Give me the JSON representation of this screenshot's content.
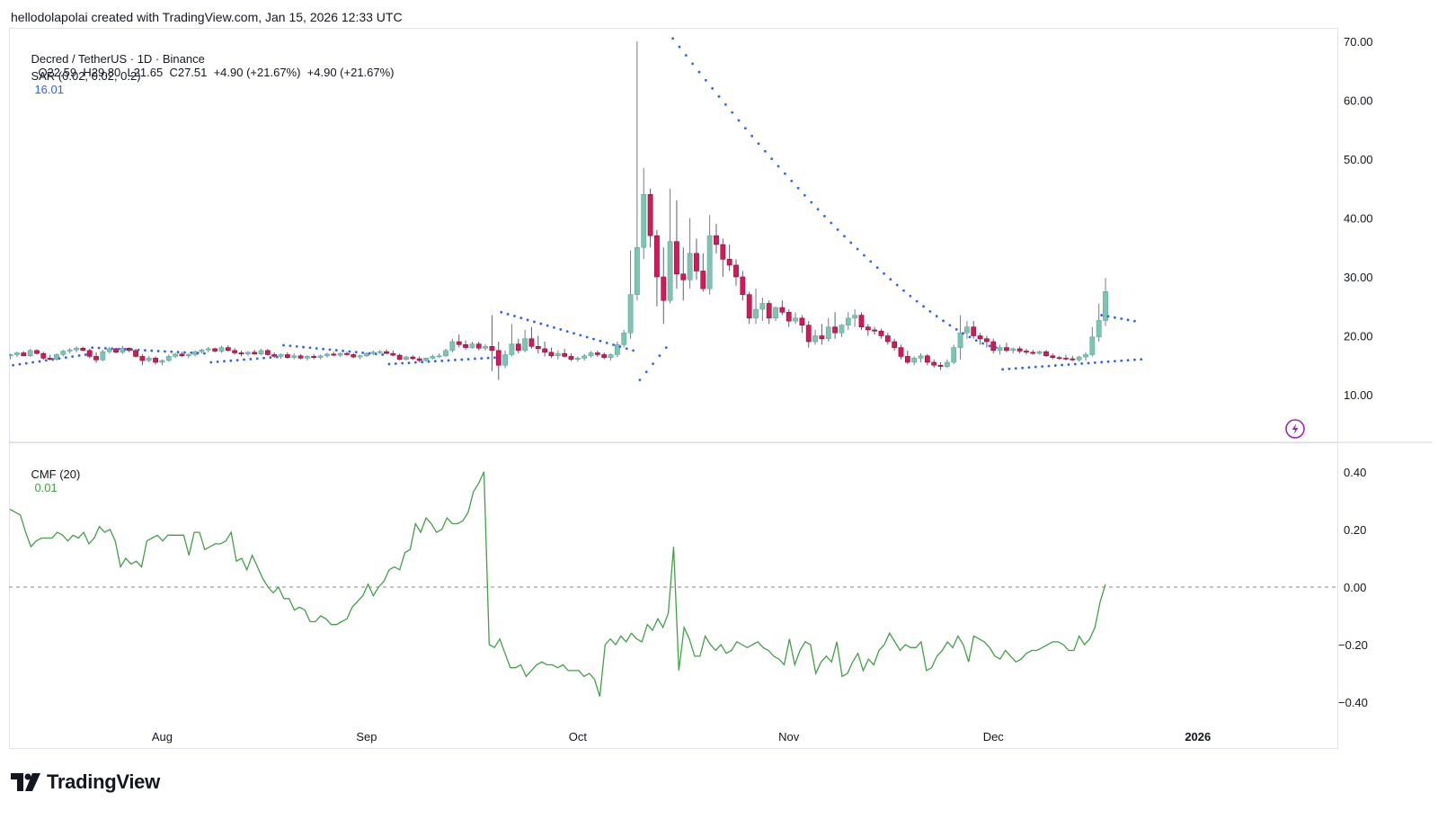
{
  "credit": "hellodolapolai created with TradingView.com, Jan 15, 2026 12:33 UTC",
  "brand": "TradingView",
  "colors": {
    "up": "#7fc4b3",
    "down": "#d6185a",
    "sar": "#2962ff",
    "cmf": "#43a047",
    "axis_text": "#131722",
    "grid": "#e0e3eb",
    "sar_value": "#2962ff",
    "cmf_value": "#43a047",
    "alert_icon": "#9c27b0"
  },
  "legend": {
    "symbol": "Decred / TetherUS · 1D · Binance",
    "ohlc": "O22.59  H29.80  L21.65  C27.51  +4.90 (+21.67%)  +4.90 (+21.67%)",
    "sar_label": "SAR (0.02, 0.02, 0.2)",
    "sar_value": "16.01",
    "cmf_label": "CMF (20)",
    "cmf_value": "0.01"
  },
  "chart_data": [
    {
      "type": "candlestick",
      "title": "Decred / TetherUS · 1D · Binance",
      "y_ticks": [
        "70.00",
        "60.00",
        "50.00",
        "40.00",
        "30.00",
        "20.00",
        "10.00"
      ],
      "x_ticks": [
        "Aug",
        "Sep",
        "Oct",
        "Nov",
        "Dec",
        "2026"
      ],
      "ylim": [
        3,
        71
      ],
      "series_sar": "SAR (0.02, 0.02, 0.2)",
      "candles": [
        [
          16.6,
          17.0,
          16.0,
          16.8
        ],
        [
          16.8,
          17.3,
          16.4,
          17.1
        ],
        [
          17.1,
          17.4,
          16.5,
          16.6
        ],
        [
          16.6,
          17.8,
          16.4,
          17.5
        ],
        [
          17.5,
          17.7,
          16.8,
          17.0
        ],
        [
          17.0,
          17.3,
          15.9,
          16.2
        ],
        [
          16.2,
          16.8,
          15.8,
          16.0
        ],
        [
          16.0,
          17.0,
          15.8,
          16.8
        ],
        [
          16.8,
          17.6,
          16.5,
          17.4
        ],
        [
          17.4,
          17.9,
          17.0,
          17.6
        ],
        [
          17.6,
          18.2,
          17.2,
          17.9
        ],
        [
          17.9,
          18.1,
          17.4,
          17.5
        ],
        [
          17.5,
          17.8,
          16.2,
          16.5
        ],
        [
          16.5,
          17.2,
          15.4,
          15.9
        ],
        [
          15.9,
          17.6,
          15.7,
          17.3
        ],
        [
          17.3,
          18.1,
          17.0,
          17.8
        ],
        [
          17.8,
          18.0,
          17.0,
          17.2
        ],
        [
          17.2,
          18.3,
          16.9,
          17.9
        ],
        [
          17.9,
          18.0,
          17.2,
          17.5
        ],
        [
          17.5,
          17.8,
          16.3,
          16.5
        ],
        [
          16.5,
          16.9,
          15.0,
          15.8
        ],
        [
          15.8,
          16.6,
          15.5,
          16.2
        ],
        [
          16.2,
          16.5,
          15.1,
          15.5
        ],
        [
          15.5,
          16.0,
          15.0,
          15.8
        ],
        [
          15.8,
          16.8,
          15.6,
          16.5
        ],
        [
          16.5,
          17.1,
          16.2,
          16.9
        ],
        [
          16.9,
          17.3,
          16.4,
          16.6
        ],
        [
          16.6,
          17.0,
          16.2,
          16.8
        ],
        [
          16.8,
          17.5,
          16.5,
          17.3
        ],
        [
          17.3,
          17.8,
          17.0,
          17.6
        ],
        [
          17.6,
          18.1,
          17.2,
          17.8
        ],
        [
          17.8,
          18.0,
          17.2,
          17.4
        ],
        [
          17.4,
          18.3,
          17.1,
          18.0
        ],
        [
          18.0,
          18.4,
          17.3,
          17.5
        ],
        [
          17.5,
          17.9,
          16.8,
          17.1
        ],
        [
          17.1,
          17.5,
          16.5,
          16.9
        ],
        [
          16.9,
          17.4,
          16.6,
          17.2
        ],
        [
          17.2,
          17.6,
          16.8,
          16.9
        ],
        [
          16.9,
          17.8,
          16.7,
          17.5
        ],
        [
          17.5,
          17.8,
          16.6,
          16.8
        ],
        [
          16.8,
          17.2,
          16.2,
          16.5
        ],
        [
          16.5,
          17.0,
          16.1,
          16.8
        ],
        [
          16.8,
          17.2,
          16.1,
          16.3
        ],
        [
          16.3,
          17.0,
          16.0,
          16.6
        ],
        [
          16.6,
          16.9,
          16.0,
          16.2
        ],
        [
          16.2,
          16.7,
          15.8,
          16.5
        ],
        [
          16.5,
          16.9,
          16.0,
          16.3
        ],
        [
          16.3,
          16.8,
          16.0,
          16.6
        ],
        [
          16.6,
          17.1,
          16.3,
          16.9
        ],
        [
          16.9,
          17.3,
          16.5,
          16.7
        ],
        [
          16.7,
          17.2,
          16.4,
          17.0
        ],
        [
          17.0,
          17.3,
          16.6,
          16.8
        ],
        [
          16.8,
          17.1,
          16.2,
          16.4
        ],
        [
          16.4,
          16.8,
          16.0,
          16.6
        ],
        [
          16.6,
          17.2,
          16.4,
          17.0
        ],
        [
          17.0,
          17.5,
          16.7,
          17.2
        ],
        [
          17.2,
          17.6,
          16.9,
          17.3
        ],
        [
          17.3,
          17.7,
          16.9,
          17.0
        ],
        [
          17.0,
          17.5,
          16.5,
          16.7
        ],
        [
          16.7,
          17.0,
          15.8,
          16.0
        ],
        [
          16.0,
          16.6,
          15.8,
          16.4
        ],
        [
          16.4,
          16.7,
          15.9,
          16.1
        ],
        [
          16.1,
          16.5,
          15.5,
          15.8
        ],
        [
          15.8,
          16.3,
          15.6,
          16.2
        ],
        [
          16.2,
          16.8,
          16.0,
          16.5
        ],
        [
          16.5,
          17.0,
          16.2,
          16.6
        ],
        [
          16.6,
          17.8,
          16.4,
          17.5
        ],
        [
          17.5,
          19.5,
          17.2,
          19.0
        ],
        [
          19.0,
          20.2,
          18.0,
          18.5
        ],
        [
          18.5,
          19.2,
          17.6,
          18.0
        ],
        [
          18.0,
          19.0,
          17.8,
          18.6
        ],
        [
          18.6,
          19.0,
          17.5,
          17.9
        ],
        [
          17.9,
          18.6,
          17.5,
          18.2
        ],
        [
          18.2,
          23.5,
          14.0,
          17.5
        ],
        [
          17.5,
          19.0,
          12.5,
          15.0
        ],
        [
          15.0,
          17.5,
          14.5,
          16.8
        ],
        [
          16.8,
          22.0,
          16.5,
          18.6
        ],
        [
          18.6,
          19.5,
          17.0,
          17.5
        ],
        [
          17.5,
          21.0,
          17.2,
          19.5
        ],
        [
          19.5,
          21.5,
          17.8,
          18.2
        ],
        [
          18.2,
          20.0,
          17.0,
          17.8
        ],
        [
          17.8,
          19.0,
          16.5,
          17.2
        ],
        [
          17.2,
          18.0,
          16.2,
          16.6
        ],
        [
          16.6,
          17.5,
          16.0,
          17.0
        ],
        [
          17.0,
          17.8,
          16.3,
          16.5
        ],
        [
          16.5,
          17.0,
          15.7,
          16.0
        ],
        [
          16.0,
          16.5,
          15.6,
          16.2
        ],
        [
          16.2,
          16.9,
          15.8,
          16.6
        ],
        [
          16.6,
          17.4,
          16.3,
          17.1
        ],
        [
          17.1,
          17.5,
          16.4,
          16.8
        ],
        [
          16.8,
          17.2,
          16.0,
          16.3
        ],
        [
          16.3,
          17.0,
          15.8,
          16.8
        ],
        [
          16.8,
          19.0,
          16.4,
          18.5
        ],
        [
          18.5,
          21.0,
          18.0,
          20.5
        ],
        [
          20.5,
          34.5,
          19.5,
          27.0
        ],
        [
          27.0,
          70.0,
          26.0,
          35.0
        ],
        [
          35.0,
          48.5,
          33.0,
          44.0
        ],
        [
          44.0,
          45.0,
          35.0,
          37.0
        ],
        [
          37.0,
          38.0,
          25.0,
          30.0
        ],
        [
          30.0,
          35.0,
          22.0,
          26.0
        ],
        [
          26.0,
          45.0,
          25.5,
          36.0
        ],
        [
          36.0,
          43.0,
          28.0,
          30.5
        ],
        [
          30.5,
          35.0,
          26.0,
          29.5
        ],
        [
          29.5,
          40.0,
          28.0,
          34.0
        ],
        [
          34.0,
          36.5,
          29.5,
          31.0
        ],
        [
          31.0,
          34.0,
          27.5,
          28.0
        ],
        [
          28.0,
          40.5,
          27.0,
          37.0
        ],
        [
          37.0,
          39.0,
          34.0,
          35.5
        ],
        [
          35.5,
          36.5,
          30.0,
          33.0
        ],
        [
          33.0,
          35.5,
          31.0,
          32.0
        ],
        [
          32.0,
          33.0,
          28.5,
          30.0
        ],
        [
          30.0,
          31.0,
          26.0,
          27.0
        ],
        [
          27.0,
          27.5,
          22.0,
          23.0
        ],
        [
          23.0,
          28.0,
          22.0,
          24.5
        ],
        [
          24.5,
          26.5,
          22.5,
          25.5
        ],
        [
          25.5,
          26.0,
          22.0,
          23.0
        ],
        [
          23.0,
          25.0,
          22.5,
          24.8
        ],
        [
          24.8,
          26.0,
          23.5,
          24.0
        ],
        [
          24.0,
          24.5,
          21.5,
          22.5
        ],
        [
          22.5,
          24.0,
          22.0,
          23.0
        ],
        [
          23.0,
          23.5,
          20.5,
          21.8
        ],
        [
          21.8,
          22.5,
          18.0,
          19.0
        ],
        [
          19.0,
          21.0,
          18.5,
          20.0
        ],
        [
          20.0,
          22.0,
          18.5,
          19.5
        ],
        [
          19.5,
          23.0,
          19.0,
          21.5
        ],
        [
          21.5,
          24.0,
          19.5,
          20.5
        ],
        [
          20.5,
          22.0,
          19.8,
          21.8
        ],
        [
          21.8,
          24.0,
          21.0,
          23.0
        ],
        [
          23.0,
          24.5,
          21.5,
          23.5
        ],
        [
          23.5,
          24.0,
          21.0,
          21.5
        ],
        [
          21.5,
          22.0,
          20.0,
          21.0
        ],
        [
          21.0,
          21.5,
          20.2,
          20.8
        ],
        [
          20.8,
          21.2,
          19.5,
          20.0
        ],
        [
          20.0,
          20.5,
          18.5,
          19.0
        ],
        [
          19.0,
          19.5,
          17.5,
          18.0
        ],
        [
          18.0,
          18.5,
          16.0,
          16.5
        ],
        [
          16.5,
          17.5,
          15.2,
          15.5
        ],
        [
          15.5,
          16.5,
          15.0,
          16.2
        ],
        [
          16.2,
          17.0,
          15.5,
          16.6
        ],
        [
          16.6,
          16.9,
          15.0,
          15.5
        ],
        [
          15.5,
          16.0,
          14.6,
          15.0
        ],
        [
          15.0,
          15.5,
          14.2,
          14.8
        ],
        [
          14.8,
          16.0,
          14.5,
          15.5
        ],
        [
          15.5,
          18.5,
          15.2,
          18.0
        ],
        [
          18.0,
          23.5,
          16.0,
          20.5
        ],
        [
          20.5,
          22.5,
          19.5,
          21.5
        ],
        [
          21.5,
          22.5,
          19.5,
          20.0
        ],
        [
          20.0,
          20.5,
          18.5,
          19.5
        ],
        [
          19.5,
          20.0,
          18.0,
          19.0
        ],
        [
          19.0,
          19.5,
          17.0,
          17.5
        ],
        [
          17.5,
          18.5,
          16.8,
          18.0
        ],
        [
          18.0,
          18.8,
          17.2,
          17.5
        ],
        [
          17.5,
          18.0,
          17.0,
          17.8
        ],
        [
          17.8,
          18.2,
          17.0,
          17.4
        ],
        [
          17.4,
          17.8,
          16.8,
          17.2
        ],
        [
          17.2,
          17.6,
          16.8,
          17.0
        ],
        [
          17.0,
          17.5,
          16.8,
          17.3
        ],
        [
          17.3,
          17.6,
          16.4,
          16.6
        ],
        [
          16.6,
          17.0,
          16.0,
          16.3
        ],
        [
          16.3,
          16.6,
          15.9,
          16.2
        ],
        [
          16.2,
          16.8,
          15.8,
          16.1
        ],
        [
          16.1,
          16.6,
          15.7,
          15.9
        ],
        [
          15.9,
          16.6,
          15.6,
          16.4
        ],
        [
          16.4,
          17.2,
          15.8,
          16.8
        ],
        [
          16.8,
          21.5,
          16.5,
          19.8
        ],
        [
          19.8,
          25.5,
          19.0,
          22.6
        ],
        [
          22.6,
          29.8,
          21.65,
          27.51
        ]
      ],
      "sar_segments": [
        {
          "from": 0,
          "to": 11,
          "start": 15.0,
          "end": 16.8
        },
        {
          "from": 12,
          "to": 29,
          "start": 18.0,
          "end": 17.0
        },
        {
          "from": 30,
          "to": 40,
          "start": 15.5,
          "end": 16.4
        },
        {
          "from": 41,
          "to": 56,
          "start": 18.4,
          "end": 16.8
        },
        {
          "from": 57,
          "to": 73,
          "start": 15.2,
          "end": 16.3
        },
        {
          "from": 74,
          "to": 94,
          "start": 24.0,
          "end": 17.5
        },
        {
          "from": 95,
          "to": 99,
          "start": 12.5,
          "end": 18.0
        },
        {
          "from": 100,
          "to": 149,
          "start": 70.5,
          "end": 18.0
        },
        {
          "from": 150,
          "to": 171,
          "start": 14.3,
          "end": 16.01
        },
        {
          "from": 165,
          "to": 170,
          "start": 23.5,
          "end": 22.5
        }
      ]
    },
    {
      "type": "line",
      "title": "CMF (20)",
      "y_ticks": [
        "0.40",
        "0.20",
        "0.00",
        "−0.20",
        "−0.40"
      ],
      "ylim": [
        -0.52,
        0.46
      ],
      "zero_line": true,
      "values": [
        0.27,
        0.26,
        0.25,
        0.19,
        0.14,
        0.16,
        0.17,
        0.17,
        0.17,
        0.19,
        0.18,
        0.16,
        0.18,
        0.17,
        0.19,
        0.15,
        0.17,
        0.21,
        0.19,
        0.2,
        0.16,
        0.07,
        0.1,
        0.08,
        0.09,
        0.07,
        0.16,
        0.17,
        0.18,
        0.16,
        0.18,
        0.18,
        0.18,
        0.18,
        0.11,
        0.19,
        0.19,
        0.13,
        0.14,
        0.15,
        0.15,
        0.16,
        0.19,
        0.09,
        0.1,
        0.06,
        0.11,
        0.07,
        0.03,
        0.0,
        -0.02,
        0.0,
        -0.04,
        -0.04,
        -0.08,
        -0.07,
        -0.08,
        -0.12,
        -0.12,
        -0.1,
        -0.11,
        -0.13,
        -0.13,
        -0.12,
        -0.11,
        -0.07,
        -0.05,
        -0.03,
        0.01,
        -0.03,
        0.0,
        0.02,
        0.06,
        0.07,
        0.06,
        0.12,
        0.13,
        0.22,
        0.19,
        0.24,
        0.22,
        0.19,
        0.2,
        0.24,
        0.22,
        0.22,
        0.23,
        0.26,
        0.33,
        0.36,
        0.4,
        -0.2,
        -0.21,
        -0.18,
        -0.23,
        -0.28,
        -0.28,
        -0.27,
        -0.31,
        -0.29,
        -0.27,
        -0.26,
        -0.27,
        -0.27,
        -0.28,
        -0.27,
        -0.29,
        -0.29,
        -0.29,
        -0.31,
        -0.3,
        -0.32,
        -0.38,
        -0.2,
        -0.18,
        -0.2,
        -0.17,
        -0.19,
        -0.16,
        -0.18,
        -0.19,
        -0.13,
        -0.15,
        -0.11,
        -0.14,
        -0.09,
        0.14,
        -0.29,
        -0.14,
        -0.18,
        -0.24,
        -0.24,
        -0.17,
        -0.2,
        -0.22,
        -0.2,
        -0.23,
        -0.22,
        -0.19,
        -0.2,
        -0.21,
        -0.2,
        -0.19,
        -0.21,
        -0.22,
        -0.24,
        -0.25,
        -0.27,
        -0.18,
        -0.27,
        -0.22,
        -0.19,
        -0.2,
        -0.3,
        -0.26,
        -0.24,
        -0.26,
        -0.19,
        -0.31,
        -0.3,
        -0.26,
        -0.23,
        -0.29,
        -0.25,
        -0.27,
        -0.22,
        -0.2,
        -0.16,
        -0.19,
        -0.22,
        -0.2,
        -0.21,
        -0.21,
        -0.19,
        -0.29,
        -0.28,
        -0.24,
        -0.22,
        -0.19,
        -0.21,
        -0.17,
        -0.2,
        -0.26,
        -0.17,
        -0.18,
        -0.19,
        -0.21,
        -0.24,
        -0.25,
        -0.22,
        -0.24,
        -0.26,
        -0.25,
        -0.23,
        -0.22,
        -0.22,
        -0.21,
        -0.2,
        -0.19,
        -0.19,
        -0.2,
        -0.22,
        -0.22,
        -0.17,
        -0.2,
        -0.18,
        -0.14,
        -0.05,
        0.01
      ]
    }
  ]
}
